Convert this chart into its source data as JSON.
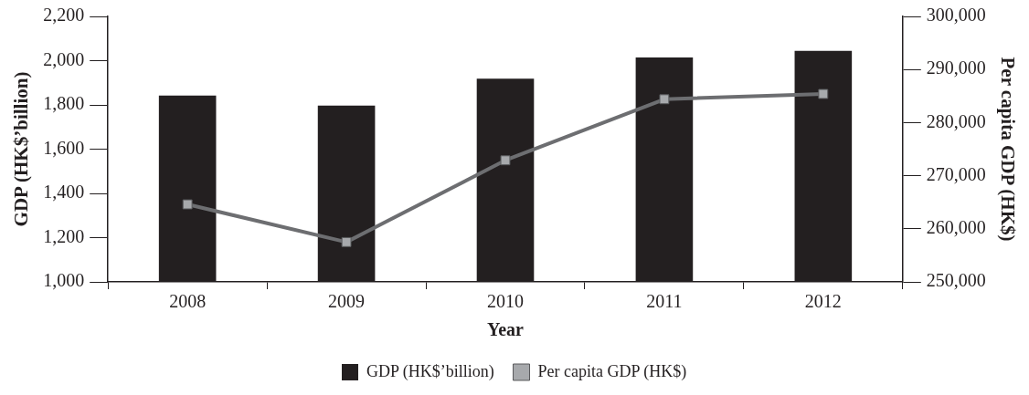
{
  "chart_data": {
    "type": "bar",
    "xlabel": "Year",
    "ylabel": "GDP (HK$’billion)",
    "y2label": "Per capita GDP (HK$)",
    "categories": [
      "2008",
      "2009",
      "2010",
      "2011",
      "2012"
    ],
    "series": [
      {
        "name": "GDP (HK$’billion)",
        "color": "#231f20",
        "values": [
          1842,
          1797,
          1919,
          2014,
          2044
        ]
      },
      {
        "name": "Per capita GDP (HK$)",
        "type": "line",
        "axis": "y2",
        "color": "#6d6e71",
        "marker": "square",
        "values": [
          264600,
          257500,
          272900,
          284400,
          285400
        ]
      }
    ],
    "ylim": [
      1000,
      2200
    ],
    "yticks": [
      {
        "value": 1000,
        "label": "1,000"
      },
      {
        "value": 1200,
        "label": "1,200"
      },
      {
        "value": 1400,
        "label": "1,400"
      },
      {
        "value": 1600,
        "label": "1,600"
      },
      {
        "value": 1800,
        "label": "1,800"
      },
      {
        "value": 2000,
        "label": "2,000"
      },
      {
        "value": 2200,
        "label": "2,200"
      }
    ],
    "y2lim": [
      250000,
      300000
    ],
    "y2ticks": [
      {
        "value": 250000,
        "label": "250,000"
      },
      {
        "value": 260000,
        "label": "260,000"
      },
      {
        "value": 270000,
        "label": "270,000"
      },
      {
        "value": 280000,
        "label": "280,000"
      },
      {
        "value": 290000,
        "label": "290,000"
      },
      {
        "value": 300000,
        "label": "300,000"
      }
    ],
    "grid": false,
    "legend": "bottom"
  }
}
